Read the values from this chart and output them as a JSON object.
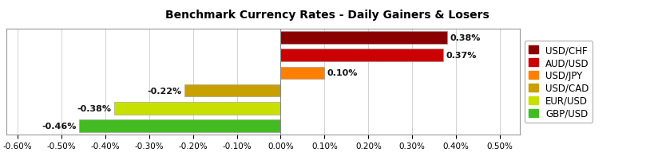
{
  "title": "Benchmark Currency Rates - Daily Gainers & Losers",
  "categories": [
    "USD/CHF",
    "AUD/USD",
    "USD/JPY",
    "USD/CAD",
    "EUR/USD",
    "GBP/USD"
  ],
  "values": [
    0.38,
    0.37,
    0.1,
    -0.22,
    -0.38,
    -0.46
  ],
  "bar_colors": [
    "#8B0000",
    "#CC0000",
    "#FF8000",
    "#C8A000",
    "#C8E000",
    "#44BB22"
  ],
  "labels": [
    "0.38%",
    "0.37%",
    "0.10%",
    "-0.22%",
    "-0.38%",
    "-0.46%"
  ],
  "xlim": [
    -0.625,
    0.545
  ],
  "xticks": [
    -0.6,
    -0.5,
    -0.4,
    -0.3,
    -0.2,
    -0.1,
    0.0,
    0.1,
    0.2,
    0.3,
    0.4,
    0.5
  ],
  "xtick_labels": [
    "-0.60%",
    "-0.50%",
    "-0.40%",
    "-0.30%",
    "-0.20%",
    "-0.10%",
    "0.00%",
    "0.10%",
    "0.20%",
    "0.30%",
    "0.40%",
    "0.50%"
  ],
  "title_bg": "#808080",
  "title_fontsize": 10,
  "legend_colors": [
    "#8B0000",
    "#CC0000",
    "#FF8000",
    "#C8A000",
    "#C8E000",
    "#44BB22"
  ],
  "background_color": "#FFFFFF",
  "plot_bg": "#FFFFFF",
  "border_color": "#999999"
}
